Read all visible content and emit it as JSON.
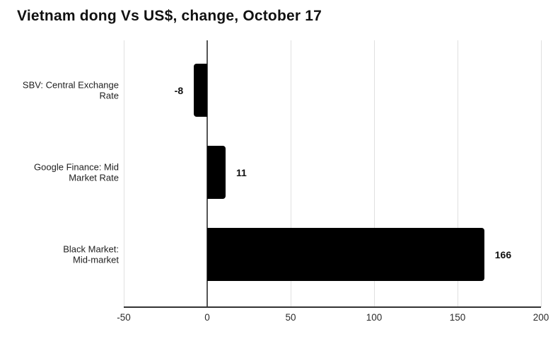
{
  "chart_data": {
    "type": "bar",
    "orientation": "horizontal",
    "title": "Vietnam dong Vs US$, change, October 17",
    "categories": [
      "SBV: Central Exchange Rate",
      "Google Finance: Mid Market Rate",
      "Black Market: Mid-market"
    ],
    "category_lines": [
      [
        "SBV: Central Exchange",
        "Rate"
      ],
      [
        "Google Finance: Mid",
        "Market Rate"
      ],
      [
        "Black Market:",
        "Mid-market"
      ]
    ],
    "values": [
      -8,
      11,
      166
    ],
    "value_labels": [
      "-8",
      "11",
      "166"
    ],
    "xticks": [
      -50,
      0,
      50,
      100,
      150,
      200
    ],
    "xtick_labels": [
      "-50",
      "0",
      "50",
      "100",
      "150",
      "200"
    ],
    "xlim": [
      -50,
      200
    ],
    "grid": true,
    "legend": false,
    "bar_color": "#000000",
    "gridline_color": "#e0e0e0",
    "zero_line_color": "#555555",
    "axis_line_color": "#333333",
    "text_color": "#111111"
  }
}
